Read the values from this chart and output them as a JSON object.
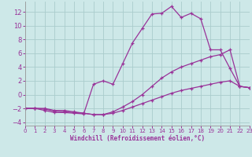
{
  "background_color": "#cde8e8",
  "grid_color": "#aacccc",
  "line_color": "#993399",
  "xlabel": "Windchill (Refroidissement éolien,°C)",
  "xlim": [
    0,
    23
  ],
  "ylim": [
    -4.5,
    13.5
  ],
  "xticks": [
    0,
    1,
    2,
    3,
    4,
    5,
    6,
    7,
    8,
    9,
    10,
    11,
    12,
    13,
    14,
    15,
    16,
    17,
    18,
    19,
    20,
    21,
    22,
    23
  ],
  "yticks": [
    -4,
    -2,
    0,
    2,
    4,
    6,
    8,
    10,
    12
  ],
  "line1": {
    "x": [
      0,
      1,
      2,
      3,
      4,
      5,
      6,
      7,
      8,
      9,
      10,
      11,
      12,
      13,
      14,
      15,
      16,
      17,
      18,
      19,
      20,
      21,
      22,
      23
    ],
    "y": [
      -2,
      -2,
      -2.3,
      -2.6,
      -2.6,
      -2.7,
      -2.8,
      1.5,
      2.0,
      1.5,
      4.5,
      7.5,
      9.6,
      11.7,
      11.8,
      12.8,
      11.2,
      11.8,
      11.0,
      6.5,
      6.5,
      3.8,
      1.2,
      1.0
    ]
  },
  "line2": {
    "x": [
      0,
      1,
      2,
      3,
      4,
      5,
      6,
      7,
      8,
      9,
      10,
      11,
      12,
      13,
      14,
      15,
      16,
      17,
      18,
      19,
      20,
      21,
      22,
      23
    ],
    "y": [
      -2,
      -2,
      -2.1,
      -2.4,
      -2.5,
      -2.6,
      -2.7,
      -2.9,
      -2.9,
      -2.5,
      -1.8,
      -1.0,
      0.0,
      1.2,
      2.4,
      3.3,
      4.0,
      4.5,
      5.0,
      5.5,
      5.8,
      6.5,
      1.2,
      1.0
    ]
  },
  "line3": {
    "x": [
      0,
      1,
      2,
      3,
      4,
      5,
      6,
      7,
      8,
      9,
      10,
      11,
      12,
      13,
      14,
      15,
      16,
      17,
      18,
      19,
      20,
      21,
      22,
      23
    ],
    "y": [
      -2,
      -2,
      -2,
      -2.3,
      -2.3,
      -2.5,
      -2.7,
      -2.9,
      -2.9,
      -2.7,
      -2.3,
      -1.8,
      -1.3,
      -0.8,
      -0.3,
      0.2,
      0.6,
      0.9,
      1.2,
      1.5,
      1.8,
      2.0,
      1.2,
      1.0
    ]
  }
}
